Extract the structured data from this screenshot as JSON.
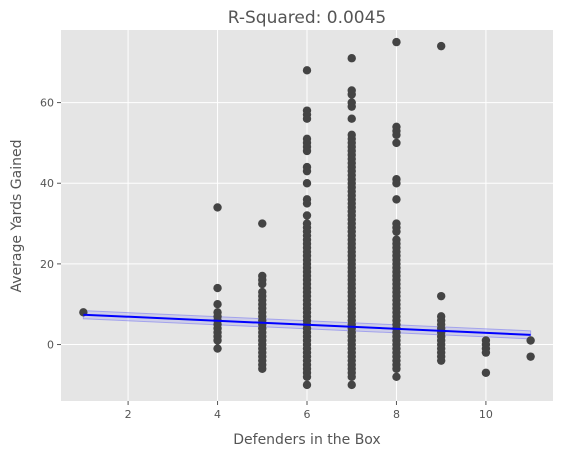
{
  "chart_data": {
    "type": "scatter",
    "title": "R-Squared: 0.0045",
    "xlabel": "Defenders in the Box",
    "ylabel": "Average Yards Gained",
    "xlim": [
      0.5,
      11.5
    ],
    "ylim": [
      -14,
      78
    ],
    "xticks": [
      2,
      4,
      6,
      8,
      10
    ],
    "yticks": [
      0,
      20,
      40,
      60
    ],
    "grid": true,
    "background": "#e5e5e5",
    "grid_color": "#ffffff",
    "point_color": "#444444",
    "fit_color": "#0000ff",
    "band_color": "#8c8cf0",
    "fit_line": {
      "x": [
        1,
        11
      ],
      "y": [
        7.4,
        2.4
      ]
    },
    "confidence_band": {
      "x": [
        1,
        11
      ],
      "upper": [
        8.4,
        3.4
      ],
      "lower": [
        6.4,
        1.4
      ]
    },
    "points": [
      {
        "x": 1,
        "y": [
          8
        ]
      },
      {
        "x": 4,
        "y": [
          34,
          14,
          10,
          8,
          7,
          6,
          5,
          4,
          3,
          2,
          1,
          -1
        ]
      },
      {
        "x": 5,
        "y": [
          30,
          17,
          16,
          15,
          13,
          12,
          11,
          10,
          9,
          8,
          7,
          6,
          5,
          4,
          3,
          2,
          1,
          0,
          -1,
          -2,
          -3,
          -4,
          -5,
          -6
        ]
      },
      {
        "x": 6,
        "y": [
          68,
          58,
          57,
          56,
          51,
          50,
          49,
          48,
          44,
          43,
          40,
          36,
          35,
          32,
          30,
          29,
          28,
          27,
          26,
          25,
          24,
          23,
          22,
          21,
          20,
          19,
          18,
          17,
          16,
          15,
          14,
          13,
          12,
          11,
          10,
          9,
          8,
          7,
          6,
          5,
          4,
          3,
          2,
          1,
          0,
          -1,
          -2,
          -3,
          -4,
          -5,
          -6,
          -7,
          -8,
          -10
        ]
      },
      {
        "x": 7,
        "y": [
          71,
          63,
          62,
          60,
          59,
          56,
          52,
          51,
          50,
          49,
          48,
          47,
          46,
          45,
          44,
          43,
          42,
          41,
          40,
          39,
          38,
          37,
          36,
          35,
          34,
          33,
          32,
          31,
          30,
          29,
          28,
          27,
          26,
          25,
          24,
          23,
          22,
          21,
          20,
          19,
          18,
          17,
          16,
          15,
          14,
          13,
          12,
          11,
          10,
          9,
          8,
          7,
          6,
          5,
          4,
          3,
          2,
          1,
          0,
          -1,
          -2,
          -3,
          -4,
          -5,
          -6,
          -7,
          -8,
          -10
        ]
      },
      {
        "x": 8,
        "y": [
          75,
          54,
          53,
          52,
          50,
          41,
          40,
          36,
          30,
          29,
          28,
          26,
          25,
          24,
          23,
          22,
          21,
          20,
          19,
          18,
          17,
          16,
          15,
          14,
          13,
          12,
          11,
          10,
          9,
          8,
          7,
          6,
          5,
          4,
          3,
          2,
          1,
          0,
          -1,
          -2,
          -3,
          -4,
          -5,
          -6,
          -8
        ]
      },
      {
        "x": 9,
        "y": [
          74,
          12,
          7,
          6,
          5,
          4,
          3,
          2,
          1,
          0,
          -1,
          -2,
          -3,
          -4
        ]
      },
      {
        "x": 10,
        "y": [
          1,
          0,
          -1,
          -2,
          -7
        ]
      },
      {
        "x": 11,
        "y": [
          1,
          -3
        ]
      }
    ]
  }
}
